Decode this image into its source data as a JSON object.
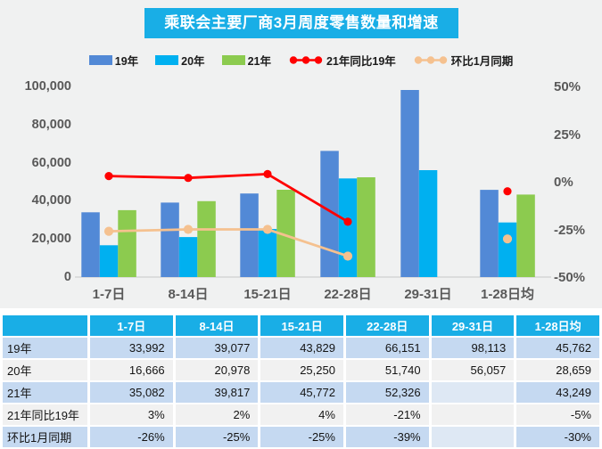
{
  "title": "乘联会主要厂商3月周度零售数量和增速",
  "legend": [
    {
      "label": "19年",
      "type": "bar",
      "color": "#5289D6"
    },
    {
      "label": "20年",
      "type": "bar",
      "color": "#00B0F0"
    },
    {
      "label": "21年",
      "type": "bar",
      "color": "#8CCB4F"
    },
    {
      "label": "21年同比19年",
      "type": "line",
      "color": "#FF0000"
    },
    {
      "label": "环比1月同期",
      "type": "line",
      "color": "#F5C18F"
    }
  ],
  "chart_data": {
    "type": "bar+line-combo",
    "categories": [
      "1-7日",
      "8-14日",
      "15-21日",
      "22-28日",
      "29-31日",
      "1-28日均"
    ],
    "series": [
      {
        "name": "19年",
        "type": "bar",
        "color": "#5289D6",
        "axis": "left",
        "values": [
          33992,
          39077,
          43829,
          66151,
          98113,
          45762
        ]
      },
      {
        "name": "20年",
        "type": "bar",
        "color": "#00B0F0",
        "axis": "left",
        "values": [
          16666,
          20978,
          25250,
          51740,
          56057,
          28659
        ]
      },
      {
        "name": "21年",
        "type": "bar",
        "color": "#8CCB4F",
        "axis": "left",
        "values": [
          35082,
          39817,
          45772,
          52326,
          null,
          43249
        ]
      },
      {
        "name": "21年同比19年",
        "type": "line",
        "color": "#FF0000",
        "axis": "right",
        "values": [
          3,
          2,
          4,
          -21,
          null,
          -5
        ]
      },
      {
        "name": "环比1月同期",
        "type": "line",
        "color": "#F5C18F",
        "axis": "right",
        "values": [
          -26,
          -25,
          -25,
          -39,
          null,
          -30
        ]
      }
    ],
    "left_axis": {
      "tick_labels": [
        "100,000",
        "80,000",
        "60,000",
        "40,000",
        "20,000",
        "0"
      ],
      "min": 0,
      "max": 100000
    },
    "right_axis": {
      "tick_labels": [
        "50%",
        "25%",
        "0%",
        "-25%",
        "-50%"
      ],
      "min": -50,
      "max": 50
    },
    "grid": false,
    "legend_position": "top",
    "title": "乘联会主要厂商3月周度零售数量和增速"
  },
  "table": {
    "header": [
      "",
      "1-7日",
      "8-14日",
      "15-21日",
      "22-28日",
      "29-31日",
      "1-28日均"
    ],
    "rows": [
      {
        "label": "19年",
        "shade": "blue",
        "cells": [
          "33,992",
          "39,077",
          "43,829",
          "66,151",
          "98,113",
          "45,762"
        ]
      },
      {
        "label": "20年",
        "shade": "white",
        "cells": [
          "16,666",
          "20,978",
          "25,250",
          "51,740",
          "56,057",
          "28,659"
        ]
      },
      {
        "label": "21年",
        "shade": "blue",
        "cells": [
          "35,082",
          "39,817",
          "45,772",
          "52,326",
          "",
          "43,249"
        ]
      },
      {
        "label": "21年同比19年",
        "shade": "white",
        "cells": [
          "3%",
          "2%",
          "4%",
          "-21%",
          "",
          "-5%"
        ]
      },
      {
        "label": "环比1月同期",
        "shade": "blue",
        "cells": [
          "-26%",
          "-25%",
          "-25%",
          "-39%",
          "",
          "-30%"
        ]
      }
    ]
  },
  "colors": {
    "banner_bg": "#19AEE6",
    "banner_text": "#FFFFFF",
    "chart_bg": "#F0F1F1",
    "axis_text": "#595959",
    "baseline": "#C6C6C6",
    "table_header_bg": "#19AEE6",
    "table_row_blue": "#C5D9F1",
    "table_row_white": "#F1F1F1",
    "table_blank_blue": "#DEE8F4"
  }
}
